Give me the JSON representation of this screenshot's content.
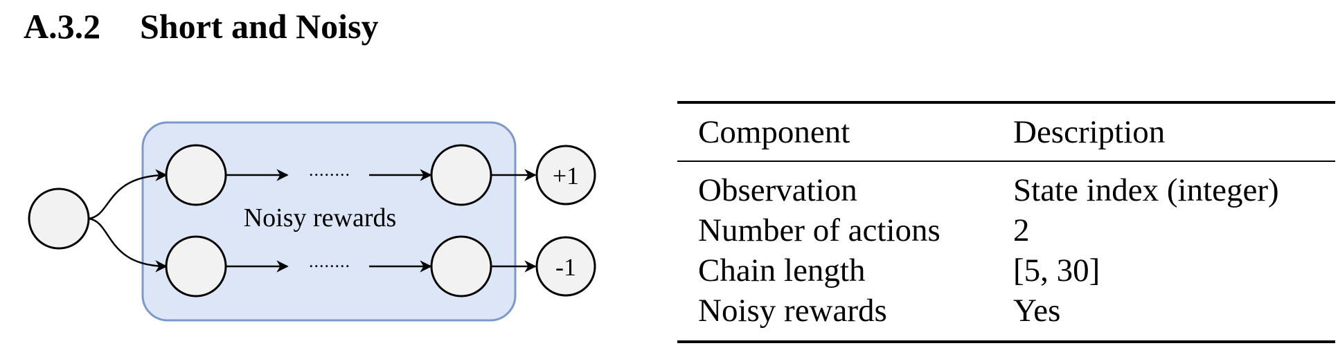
{
  "section": {
    "number": "A.3.2",
    "title": "Short and Noisy"
  },
  "diagram": {
    "region_label": "Noisy rewards",
    "ellipsis_top": "........",
    "ellipsis_bottom": "........",
    "terminal_top": "+1",
    "terminal_bottom": "-1",
    "colors": {
      "region_fill": "#dce6f7",
      "region_stroke": "#7c98c8",
      "node_fill": "#f2f2f2",
      "node_stroke": "#000000"
    }
  },
  "table": {
    "headers": [
      "Component",
      "Description"
    ],
    "rows": [
      [
        "Observation",
        "State index (integer)"
      ],
      [
        "Number of actions",
        "2"
      ],
      [
        "Chain length",
        "[5, 30]"
      ],
      [
        "Noisy rewards",
        "Yes"
      ]
    ]
  }
}
